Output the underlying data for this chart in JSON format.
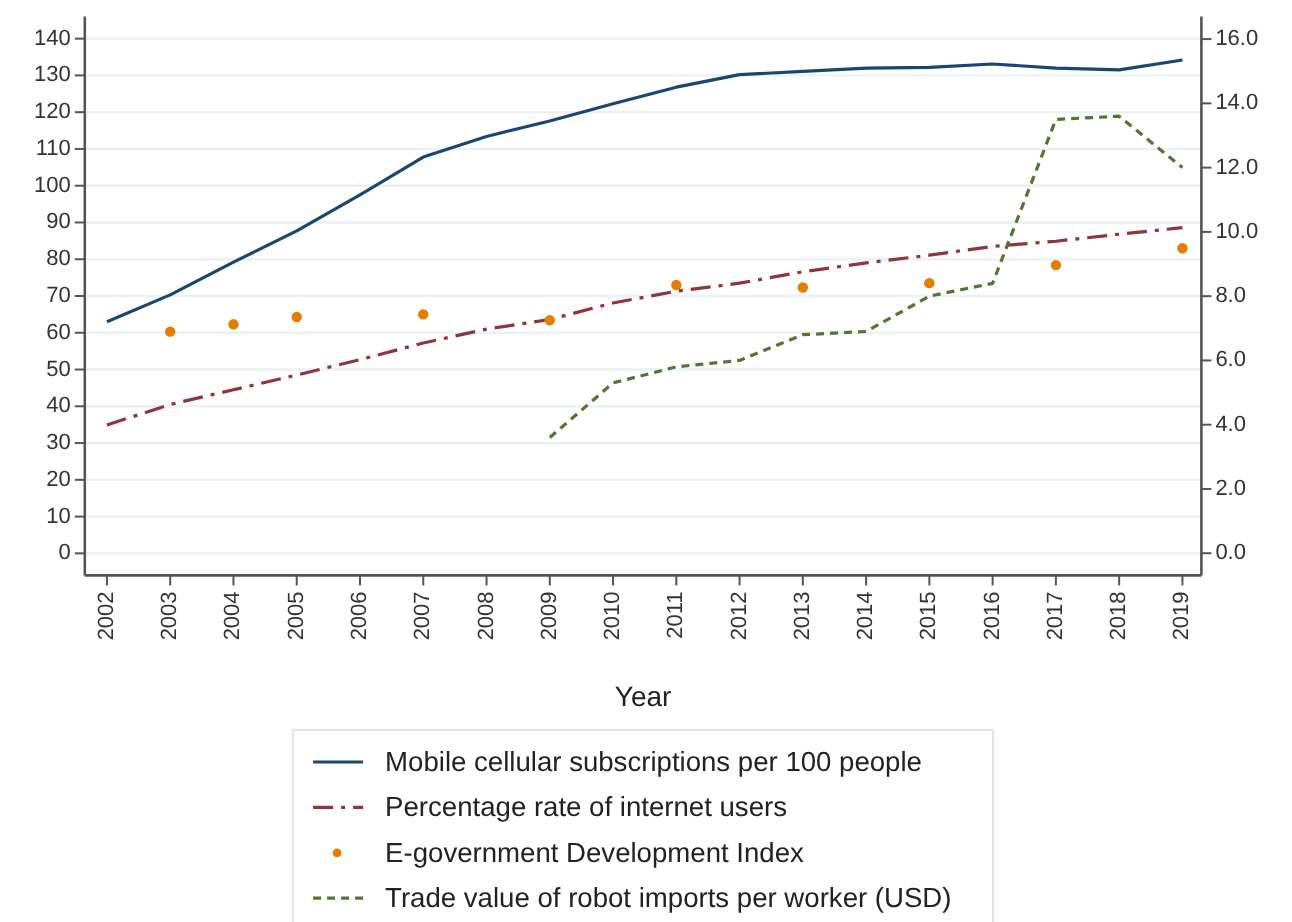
{
  "chart_data": {
    "type": "line",
    "xlabel": "Year",
    "x": [
      2002,
      2003,
      2004,
      2005,
      2006,
      2007,
      2008,
      2009,
      2010,
      2011,
      2012,
      2013,
      2014,
      2015,
      2016,
      2017,
      2018,
      2019
    ],
    "xlim": [
      2001.65,
      2019.3
    ],
    "xticks": [
      2002,
      2003,
      2004,
      2005,
      2006,
      2007,
      2008,
      2009,
      2010,
      2011,
      2012,
      2013,
      2014,
      2015,
      2016,
      2017,
      2018,
      2019
    ],
    "ylim": [
      -6,
      146
    ],
    "yticks": [
      0,
      10,
      20,
      30,
      40,
      50,
      60,
      70,
      80,
      90,
      100,
      110,
      120,
      130,
      140
    ],
    "y2lim": [
      -0.69,
      16.7
    ],
    "y2ticks": [
      {
        "value": 0,
        "label": "0.0"
      },
      {
        "value": 2,
        "label": "2.0"
      },
      {
        "value": 4,
        "label": "4.0"
      },
      {
        "value": 6,
        "label": "6.0"
      },
      {
        "value": 8,
        "label": "8.0"
      },
      {
        "value": 10,
        "label": "10.0"
      },
      {
        "value": 12,
        "label": "12.0"
      },
      {
        "value": 14,
        "label": "14.0"
      },
      {
        "value": 16,
        "label": "16.0"
      }
    ],
    "grid": "y",
    "legend": "bottom",
    "series": [
      {
        "name": "Mobile cellular subscriptions per 100 people",
        "line_style": "solid",
        "color": "#1a476f",
        "values": [
          63,
          70.3,
          79.2,
          87.7,
          97.5,
          107.8,
          113.4,
          117.6,
          122.3,
          126.8,
          130.2,
          131.1,
          132,
          132.2,
          133.1,
          132,
          131.5,
          134.2
        ]
      },
      {
        "name": "Percentage rate of internet users",
        "line_style": "dashdot",
        "color": "#90353b",
        "values": [
          34.9,
          40.5,
          44.5,
          48.5,
          52.7,
          57.2,
          61,
          63.6,
          68.1,
          71.3,
          73.5,
          76.6,
          79,
          81.1,
          83.5,
          84.9,
          86.8,
          88.6
        ]
      },
      {
        "name": "E-government Development Index",
        "type": "scatter",
        "marker": "circle",
        "color": "#e37e00",
        "values": [
          null,
          60.3,
          62.3,
          64.3,
          null,
          65,
          null,
          63.4,
          null,
          73,
          null,
          72.3,
          null,
          73.5,
          null,
          78.4,
          null,
          83
        ]
      },
      {
        "name": "Trade value of robot imports per worker (USD)",
        "line_style": "dashed",
        "axis": "y2",
        "color": "#55752f",
        "values": [
          null,
          null,
          null,
          null,
          null,
          null,
          null,
          3.6,
          5.3,
          5.8,
          6,
          6.8,
          6.9,
          8,
          8.4,
          13.5,
          13.6,
          12
        ]
      }
    ]
  }
}
